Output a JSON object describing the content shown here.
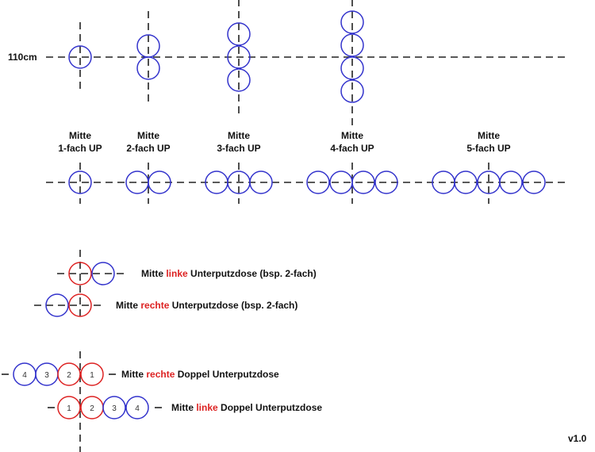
{
  "height_label": "110cm",
  "version": "v1.0",
  "colors": {
    "box": "#3333cc",
    "highlight": "#dd2222",
    "line": "#222222"
  },
  "center_labels": [
    {
      "line1": "Mitte",
      "line2": "1-fach UP"
    },
    {
      "line1": "Mitte",
      "line2": "2-fach UP"
    },
    {
      "line1": "Mitte",
      "line2": "3-fach UP"
    },
    {
      "line1": "Mitte",
      "line2": "4-fach UP"
    },
    {
      "line1": "Mitte",
      "line2": "5-fach UP"
    }
  ],
  "examples": [
    {
      "pre": "Mitte ",
      "highlight": "linke",
      "post": " Unterputzdose (bsp. 2-fach)"
    },
    {
      "pre": "Mitte ",
      "highlight": "rechte",
      "post": " Unterputzdose (bsp. 2-fach)"
    },
    {
      "pre": "Mitte ",
      "highlight": "rechte",
      "post": " Doppel Unterputzdose",
      "numbers": [
        "4",
        "3",
        "2",
        "1"
      ]
    },
    {
      "pre": "Mitte ",
      "highlight": "linke",
      "post": " Doppel Unterputzdose",
      "numbers": [
        "1",
        "2",
        "3",
        "4"
      ]
    }
  ]
}
